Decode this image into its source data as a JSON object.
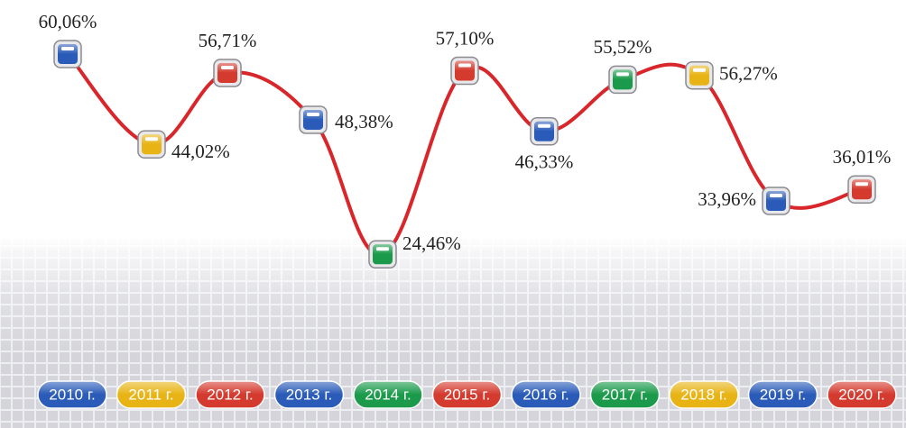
{
  "chart_data": {
    "type": "line",
    "categories": [
      "2010 г.",
      "2011 г.",
      "2012 г.",
      "2013 г.",
      "2014 г.",
      "2015 г.",
      "2016 г.",
      "2017 г.",
      "2018 г.",
      "2019 г.",
      "2020 г."
    ],
    "values": [
      60.06,
      44.02,
      56.71,
      48.38,
      24.46,
      57.1,
      46.33,
      55.52,
      56.27,
      33.96,
      36.01
    ],
    "value_labels": [
      "60,06%",
      "44,02%",
      "56,71%",
      "48,38%",
      "24,46%",
      "57,10%",
      "46,33%",
      "55,52%",
      "56,27%",
      "33,96%",
      "36,01%"
    ],
    "color": "#d8262b",
    "colors": [
      "#2a5bb8",
      "#e8b415",
      "#d43a2e",
      "#2a5bb8",
      "#1a9a4a",
      "#d43a2e",
      "#2a5bb8",
      "#1a9a4a",
      "#e8b415",
      "#2a5bb8",
      "#d43a2e"
    ],
    "ylim": [
      0,
      70
    ]
  }
}
